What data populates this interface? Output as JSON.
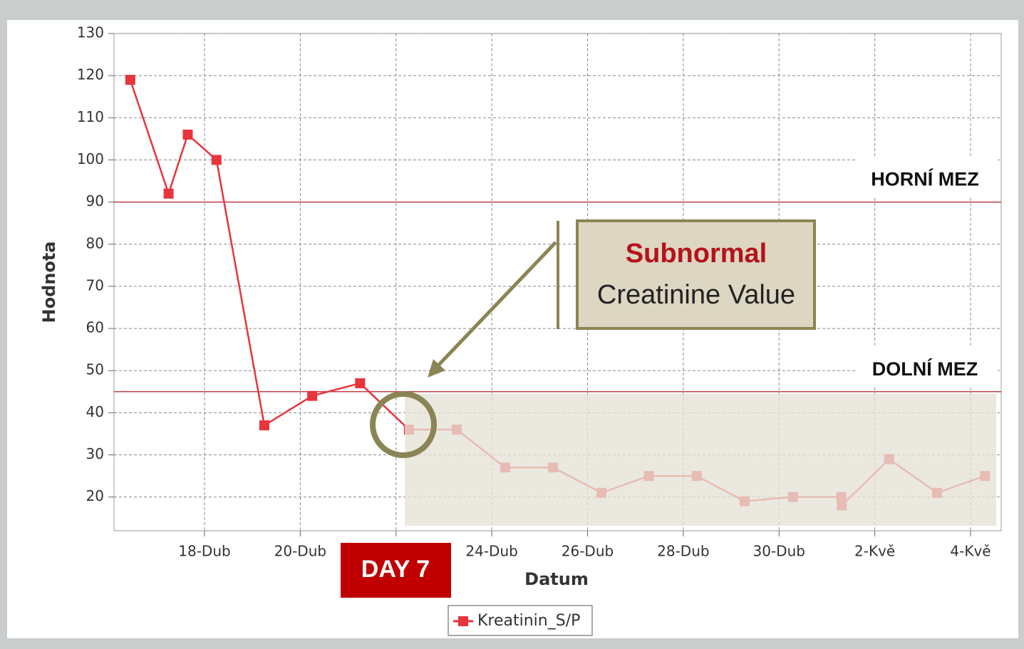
{
  "chart_data": {
    "type": "line",
    "x_label": "Datum",
    "y_label": "Hodnota",
    "x": [
      16.45,
      17.25,
      17.65,
      18.25,
      19.25,
      20.25,
      21.25,
      22.27,
      23.27,
      24.28,
      25.28,
      26.29,
      27.28,
      28.28,
      29.28,
      30.29,
      31.3,
      31.31,
      32.3,
      33.3,
      34.3
    ],
    "series": [
      {
        "name": "Kreatinin_S/P",
        "color": "#e8343c",
        "values": [
          119,
          92,
          106,
          100,
          37,
          44,
          47,
          36,
          36,
          27,
          27,
          21,
          25,
          25,
          19,
          20,
          20,
          18,
          29,
          21,
          25
        ]
      }
    ],
    "xlim": [
      16.11,
      34.64
    ],
    "xticks": [
      {
        "value": 18,
        "label": "18-Dub"
      },
      {
        "value": 20,
        "label": "20-Dub"
      },
      {
        "value": 22,
        "label": "22-Dub"
      },
      {
        "value": 24,
        "label": "24-Dub"
      },
      {
        "value": 26,
        "label": "26-Dub"
      },
      {
        "value": 28,
        "label": "28-Dub"
      },
      {
        "value": 30,
        "label": "30-Dub"
      },
      {
        "value": 32,
        "label": "2-Kvě"
      },
      {
        "value": 34,
        "label": "4-Kvě"
      }
    ],
    "ylim": [
      12,
      130
    ],
    "yticks": [
      20,
      30,
      40,
      50,
      60,
      70,
      80,
      90,
      100,
      110,
      120,
      130
    ],
    "grid": true,
    "reference_lines": [
      {
        "value": 90,
        "label": "HORNÍ MEZ"
      },
      {
        "value": 45,
        "label": "DOLNÍ MEZ"
      }
    ],
    "annotations": {
      "callout_title": "Subnormal",
      "callout_text": "Creatinine Value",
      "day_marker": "DAY 7"
    }
  }
}
